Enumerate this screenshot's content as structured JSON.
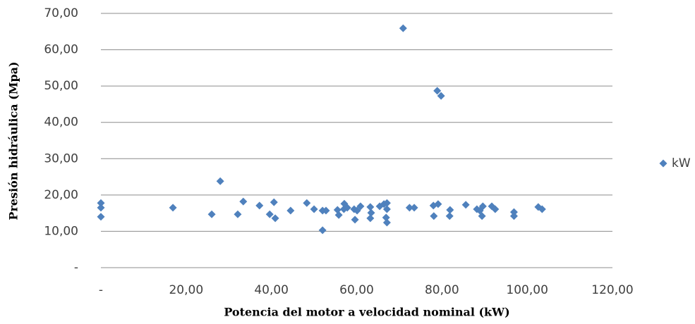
{
  "chart_data": {
    "type": "scatter",
    "x_label": "Potencia  del motor  a velocidad  nominal  (kW)",
    "y_label": "Presión  hidráulica  (Mpa)",
    "legend_position": "right",
    "grid": true,
    "xlim": [
      0,
      120
    ],
    "ylim": [
      0,
      70
    ],
    "xticks": [
      {
        "value": 0,
        "label": "-"
      },
      {
        "value": 20,
        "label": "20,00"
      },
      {
        "value": 40,
        "label": "40,00"
      },
      {
        "value": 60,
        "label": "60,00"
      },
      {
        "value": 80,
        "label": "80,00"
      },
      {
        "value": 100,
        "label": "100,00"
      },
      {
        "value": 120,
        "label": "120,00"
      }
    ],
    "yticks": [
      {
        "value": 0,
        "label": "-"
      },
      {
        "value": 10,
        "label": "10,00"
      },
      {
        "value": 20,
        "label": "20,00"
      },
      {
        "value": 30,
        "label": "30,00"
      },
      {
        "value": 40,
        "label": "40,00"
      },
      {
        "value": 50,
        "label": "50,00"
      },
      {
        "value": 60,
        "label": "60,00"
      },
      {
        "value": 70,
        "label": "70,00"
      }
    ],
    "series": [
      {
        "name": "kW",
        "color": "#4f81bd",
        "x": [
          0,
          0,
          0,
          16.9,
          26.0,
          28.0,
          32.1,
          33.4,
          37.2,
          39.6,
          40.6,
          40.9,
          44.5,
          48.3,
          50.0,
          52.0,
          52.8,
          52.0,
          55.5,
          55.8,
          57.0,
          57.1,
          57.8,
          59.4,
          59.6,
          60.1,
          60.9,
          63.2,
          63.4,
          63.2,
          65.4,
          66.4,
          67.1,
          67.1,
          66.9,
          67.1,
          70.9,
          72.4,
          73.5,
          78.0,
          79.1,
          78.1,
          78.9,
          79.8,
          81.9,
          81.8,
          85.6,
          88.2,
          88.9,
          89.4,
          89.6,
          91.7,
          92.5,
          96.9,
          96.9,
          102.6,
          103.5
        ],
        "values": [
          17.8,
          16.5,
          14.0,
          16.5,
          14.7,
          23.8,
          14.7,
          18.2,
          17.1,
          14.7,
          18.0,
          13.6,
          15.7,
          17.8,
          16.1,
          15.7,
          15.7,
          10.3,
          15.9,
          14.5,
          16.1,
          17.6,
          16.5,
          16.1,
          13.2,
          15.7,
          16.9,
          16.7,
          15.1,
          13.6,
          16.9,
          17.5,
          17.8,
          16.1,
          13.8,
          12.4,
          65.9,
          16.5,
          16.5,
          17.1,
          17.5,
          14.2,
          48.7,
          47.3,
          15.9,
          14.2,
          17.3,
          16.1,
          15.7,
          14.2,
          16.9,
          16.9,
          16.1,
          15.3,
          14.2,
          16.7,
          16.1
        ]
      }
    ]
  }
}
